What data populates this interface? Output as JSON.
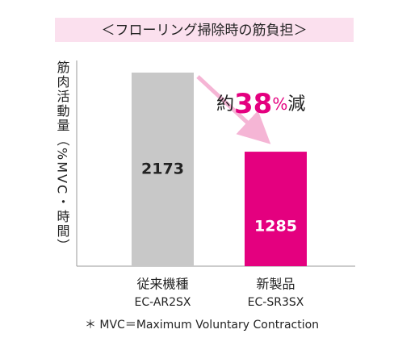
{
  "chart_data": {
    "type": "bar",
    "title": "＜フローリング掃除時の筋負担＞",
    "y_label": "筋肉活動量（%MVC・時間）",
    "categories": [
      "従来機種",
      "新製品"
    ],
    "models": [
      "EC-AR2SX",
      "EC-SR3SX"
    ],
    "values": [
      2173,
      1285
    ],
    "colors": [
      "#c8c8c8",
      "#e4007f"
    ],
    "value_label_colors": [
      "#222222",
      "#ffffff"
    ],
    "annotation": [
      "約",
      "38",
      "%",
      "減"
    ],
    "footnote": "＊ MVC＝Maximum Voluntary Contraction"
  }
}
